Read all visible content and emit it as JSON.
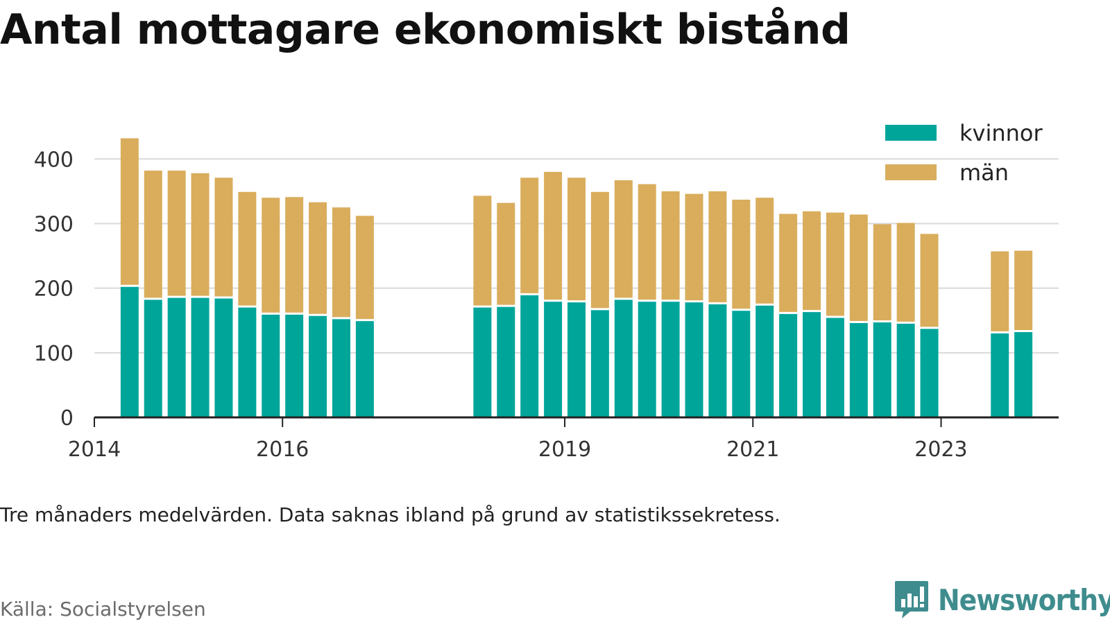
{
  "title": "Antal mottagare ekonomiskt bistånd",
  "note": "Tre månaders medelvärden. Data saknas ibland på grund av statistikssekretess.",
  "source": "Källa: Socialstyrelsen",
  "brand": {
    "name": "Newsworthy",
    "color": "#3f8c8e"
  },
  "colors": {
    "kvinnor": "#00a59a",
    "man": "#d9ad5c",
    "grid": "#d9d9d9",
    "axis": "#222222"
  },
  "chart_data": {
    "type": "bar",
    "stacked": true,
    "title": "Antal mottagare ekonomiskt bistånd",
    "x_start": "2014-01",
    "x_end": "2024-04",
    "periods": [
      "2014-Q2",
      "2014-Q3",
      "2014-Q4",
      "2015-Q1",
      "2015-Q2",
      "2015-Q3",
      "2015-Q4",
      "2016-Q1",
      "2016-Q2",
      "2016-Q3",
      "2016-Q4",
      "2018-Q1",
      "2018-Q2",
      "2018-Q3",
      "2018-Q4",
      "2019-Q1",
      "2019-Q2",
      "2019-Q3",
      "2019-Q4",
      "2020-Q1",
      "2020-Q2",
      "2020-Q3",
      "2020-Q4",
      "2021-Q1",
      "2021-Q2",
      "2021-Q3",
      "2021-Q4",
      "2022-Q1",
      "2022-Q2",
      "2022-Q3",
      "2022-Q4",
      "2023-Q3",
      "2023-Q4"
    ],
    "x_ticks": [
      "2014",
      "2016",
      "2019",
      "2021",
      "2023"
    ],
    "y_ticks": [
      0,
      100,
      200,
      300,
      400
    ],
    "ylim": [
      0,
      440
    ],
    "legend_position": "top-right",
    "series": [
      {
        "name": "kvinnor",
        "values": [
          202,
          182,
          185,
          185,
          184,
          170,
          159,
          159,
          157,
          152,
          149,
          170,
          171,
          189,
          179,
          178,
          166,
          182,
          179,
          179,
          178,
          175,
          165,
          173,
          160,
          163,
          154,
          146,
          147,
          145,
          137,
          130,
          132
        ]
      },
      {
        "name": "män",
        "values": [
          230,
          200,
          197,
          193,
          187,
          179,
          181,
          182,
          176,
          173,
          163,
          173,
          161,
          182,
          201,
          193,
          183,
          185,
          182,
          171,
          168,
          175,
          172,
          167,
          155,
          156,
          163,
          168,
          152,
          156,
          147,
          127,
          126
        ]
      }
    ]
  }
}
